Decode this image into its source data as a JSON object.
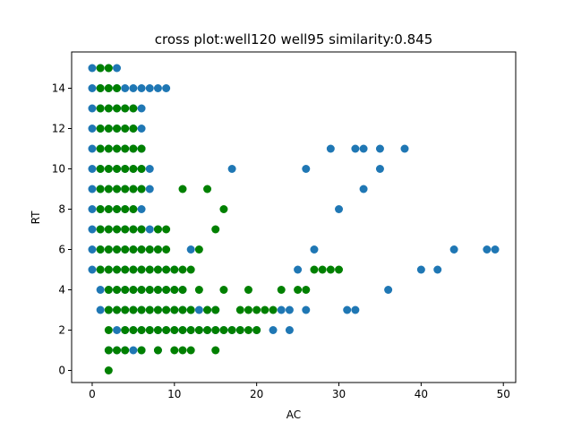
{
  "chart_data": {
    "type": "scatter",
    "title": "cross plot:well120 well95 similarity:0.845",
    "xlabel": "AC",
    "ylabel": "RT",
    "xlim": [
      -2.5,
      51.5
    ],
    "ylim": [
      -0.6,
      15.8
    ],
    "xticks": [
      0,
      10,
      20,
      30,
      40,
      50
    ],
    "yticks": [
      0,
      2,
      4,
      6,
      8,
      10,
      12,
      14
    ],
    "grid": false,
    "colors": {
      "series_0": "#1f77b4",
      "series_1": "#008000"
    },
    "series": [
      {
        "color": "#1f77b4",
        "points": [
          [
            0,
            15
          ],
          [
            1,
            15
          ],
          [
            2,
            15
          ],
          [
            3,
            15
          ],
          [
            0,
            14
          ],
          [
            1,
            14
          ],
          [
            2,
            14
          ],
          [
            3,
            14
          ],
          [
            4,
            14
          ],
          [
            5,
            14
          ],
          [
            6,
            14
          ],
          [
            7,
            14
          ],
          [
            8,
            14
          ],
          [
            9,
            14
          ],
          [
            0,
            13
          ],
          [
            1,
            13
          ],
          [
            2,
            13
          ],
          [
            3,
            13
          ],
          [
            4,
            13
          ],
          [
            5,
            13
          ],
          [
            6,
            13
          ],
          [
            0,
            12
          ],
          [
            1,
            12
          ],
          [
            2,
            12
          ],
          [
            3,
            12
          ],
          [
            4,
            12
          ],
          [
            5,
            12
          ],
          [
            6,
            12
          ],
          [
            0,
            11
          ],
          [
            1,
            11
          ],
          [
            2,
            11
          ],
          [
            3,
            11
          ],
          [
            4,
            11
          ],
          [
            5,
            11
          ],
          [
            6,
            11
          ],
          [
            29,
            11
          ],
          [
            32,
            11
          ],
          [
            33,
            11
          ],
          [
            35,
            11
          ],
          [
            38,
            11
          ],
          [
            0,
            10
          ],
          [
            1,
            10
          ],
          [
            2,
            10
          ],
          [
            3,
            10
          ],
          [
            4,
            10
          ],
          [
            5,
            10
          ],
          [
            6,
            10
          ],
          [
            7,
            10
          ],
          [
            17,
            10
          ],
          [
            26,
            10
          ],
          [
            35,
            10
          ],
          [
            0,
            9
          ],
          [
            1,
            9
          ],
          [
            2,
            9
          ],
          [
            3,
            9
          ],
          [
            4,
            9
          ],
          [
            5,
            9
          ],
          [
            6,
            9
          ],
          [
            7,
            9
          ],
          [
            33,
            9
          ],
          [
            0,
            8
          ],
          [
            1,
            8
          ],
          [
            2,
            8
          ],
          [
            3,
            8
          ],
          [
            4,
            8
          ],
          [
            5,
            8
          ],
          [
            6,
            8
          ],
          [
            30,
            8
          ],
          [
            0,
            7
          ],
          [
            1,
            7
          ],
          [
            2,
            7
          ],
          [
            3,
            7
          ],
          [
            4,
            7
          ],
          [
            5,
            7
          ],
          [
            6,
            7
          ],
          [
            7,
            7
          ],
          [
            8,
            7
          ],
          [
            0,
            6
          ],
          [
            1,
            6
          ],
          [
            2,
            6
          ],
          [
            3,
            6
          ],
          [
            4,
            6
          ],
          [
            5,
            6
          ],
          [
            6,
            6
          ],
          [
            7,
            6
          ],
          [
            8,
            6
          ],
          [
            12,
            6
          ],
          [
            27,
            6
          ],
          [
            44,
            6
          ],
          [
            48,
            6
          ],
          [
            49,
            6
          ],
          [
            0,
            5
          ],
          [
            1,
            5
          ],
          [
            2,
            5
          ],
          [
            3,
            5
          ],
          [
            4,
            5
          ],
          [
            5,
            5
          ],
          [
            6,
            5
          ],
          [
            7,
            5
          ],
          [
            8,
            5
          ],
          [
            9,
            5
          ],
          [
            10,
            5
          ],
          [
            25,
            5
          ],
          [
            40,
            5
          ],
          [
            42,
            5
          ],
          [
            1,
            4
          ],
          [
            2,
            4
          ],
          [
            3,
            4
          ],
          [
            4,
            4
          ],
          [
            5,
            4
          ],
          [
            6,
            4
          ],
          [
            7,
            4
          ],
          [
            8,
            4
          ],
          [
            9,
            4
          ],
          [
            10,
            4
          ],
          [
            11,
            4
          ],
          [
            36,
            4
          ],
          [
            1,
            3
          ],
          [
            2,
            3
          ],
          [
            3,
            3
          ],
          [
            4,
            3
          ],
          [
            5,
            3
          ],
          [
            6,
            3
          ],
          [
            7,
            3
          ],
          [
            8,
            3
          ],
          [
            9,
            3
          ],
          [
            10,
            3
          ],
          [
            11,
            3
          ],
          [
            12,
            3
          ],
          [
            13,
            3
          ],
          [
            14,
            3
          ],
          [
            15,
            3
          ],
          [
            23,
            3
          ],
          [
            24,
            3
          ],
          [
            26,
            3
          ],
          [
            31,
            3
          ],
          [
            32,
            3
          ],
          [
            3,
            2
          ],
          [
            4,
            2
          ],
          [
            5,
            2
          ],
          [
            6,
            2
          ],
          [
            7,
            2
          ],
          [
            8,
            2
          ],
          [
            9,
            2
          ],
          [
            10,
            2
          ],
          [
            11,
            2
          ],
          [
            12,
            2
          ],
          [
            13,
            2
          ],
          [
            14,
            2
          ],
          [
            15,
            2
          ],
          [
            16,
            2
          ],
          [
            17,
            2
          ],
          [
            18,
            2
          ],
          [
            20,
            2
          ],
          [
            22,
            2
          ],
          [
            24,
            2
          ],
          [
            2,
            1
          ],
          [
            3,
            1
          ],
          [
            4,
            1
          ],
          [
            5,
            1
          ],
          [
            6,
            1
          ],
          [
            8,
            1
          ]
        ]
      },
      {
        "color": "#008000",
        "points": [
          [
            1,
            15
          ],
          [
            2,
            15
          ],
          [
            1,
            14
          ],
          [
            2,
            14
          ],
          [
            3,
            14
          ],
          [
            1,
            13
          ],
          [
            2,
            13
          ],
          [
            3,
            13
          ],
          [
            4,
            13
          ],
          [
            5,
            13
          ],
          [
            1,
            12
          ],
          [
            2,
            12
          ],
          [
            3,
            12
          ],
          [
            4,
            12
          ],
          [
            5,
            12
          ],
          [
            1,
            11
          ],
          [
            2,
            11
          ],
          [
            3,
            11
          ],
          [
            4,
            11
          ],
          [
            5,
            11
          ],
          [
            6,
            11
          ],
          [
            1,
            10
          ],
          [
            2,
            10
          ],
          [
            3,
            10
          ],
          [
            4,
            10
          ],
          [
            5,
            10
          ],
          [
            6,
            10
          ],
          [
            1,
            9
          ],
          [
            2,
            9
          ],
          [
            3,
            9
          ],
          [
            4,
            9
          ],
          [
            5,
            9
          ],
          [
            6,
            9
          ],
          [
            11,
            9
          ],
          [
            14,
            9
          ],
          [
            1,
            8
          ],
          [
            2,
            8
          ],
          [
            3,
            8
          ],
          [
            4,
            8
          ],
          [
            5,
            8
          ],
          [
            16,
            8
          ],
          [
            1,
            7
          ],
          [
            2,
            7
          ],
          [
            3,
            7
          ],
          [
            4,
            7
          ],
          [
            5,
            7
          ],
          [
            6,
            7
          ],
          [
            8,
            7
          ],
          [
            9,
            7
          ],
          [
            15,
            7
          ],
          [
            1,
            6
          ],
          [
            2,
            6
          ],
          [
            3,
            6
          ],
          [
            4,
            6
          ],
          [
            5,
            6
          ],
          [
            6,
            6
          ],
          [
            7,
            6
          ],
          [
            8,
            6
          ],
          [
            9,
            6
          ],
          [
            13,
            6
          ],
          [
            1,
            5
          ],
          [
            2,
            5
          ],
          [
            3,
            5
          ],
          [
            4,
            5
          ],
          [
            5,
            5
          ],
          [
            6,
            5
          ],
          [
            7,
            5
          ],
          [
            8,
            5
          ],
          [
            9,
            5
          ],
          [
            10,
            5
          ],
          [
            11,
            5
          ],
          [
            12,
            5
          ],
          [
            27,
            5
          ],
          [
            28,
            5
          ],
          [
            29,
            5
          ],
          [
            30,
            5
          ],
          [
            2,
            4
          ],
          [
            3,
            4
          ],
          [
            4,
            4
          ],
          [
            5,
            4
          ],
          [
            6,
            4
          ],
          [
            7,
            4
          ],
          [
            8,
            4
          ],
          [
            9,
            4
          ],
          [
            10,
            4
          ],
          [
            11,
            4
          ],
          [
            13,
            4
          ],
          [
            16,
            4
          ],
          [
            19,
            4
          ],
          [
            23,
            4
          ],
          [
            25,
            4
          ],
          [
            26,
            4
          ],
          [
            2,
            3
          ],
          [
            3,
            3
          ],
          [
            4,
            3
          ],
          [
            5,
            3
          ],
          [
            6,
            3
          ],
          [
            7,
            3
          ],
          [
            8,
            3
          ],
          [
            9,
            3
          ],
          [
            10,
            3
          ],
          [
            11,
            3
          ],
          [
            12,
            3
          ],
          [
            14,
            3
          ],
          [
            15,
            3
          ],
          [
            18,
            3
          ],
          [
            19,
            3
          ],
          [
            20,
            3
          ],
          [
            21,
            3
          ],
          [
            22,
            3
          ],
          [
            2,
            2
          ],
          [
            4,
            2
          ],
          [
            5,
            2
          ],
          [
            6,
            2
          ],
          [
            7,
            2
          ],
          [
            8,
            2
          ],
          [
            9,
            2
          ],
          [
            10,
            2
          ],
          [
            11,
            2
          ],
          [
            12,
            2
          ],
          [
            13,
            2
          ],
          [
            14,
            2
          ],
          [
            15,
            2
          ],
          [
            16,
            2
          ],
          [
            17,
            2
          ],
          [
            18,
            2
          ],
          [
            19,
            2
          ],
          [
            20,
            2
          ],
          [
            2,
            1
          ],
          [
            3,
            1
          ],
          [
            4,
            1
          ],
          [
            6,
            1
          ],
          [
            8,
            1
          ],
          [
            10,
            1
          ],
          [
            11,
            1
          ],
          [
            12,
            1
          ],
          [
            15,
            1
          ],
          [
            2,
            0
          ]
        ]
      }
    ]
  }
}
